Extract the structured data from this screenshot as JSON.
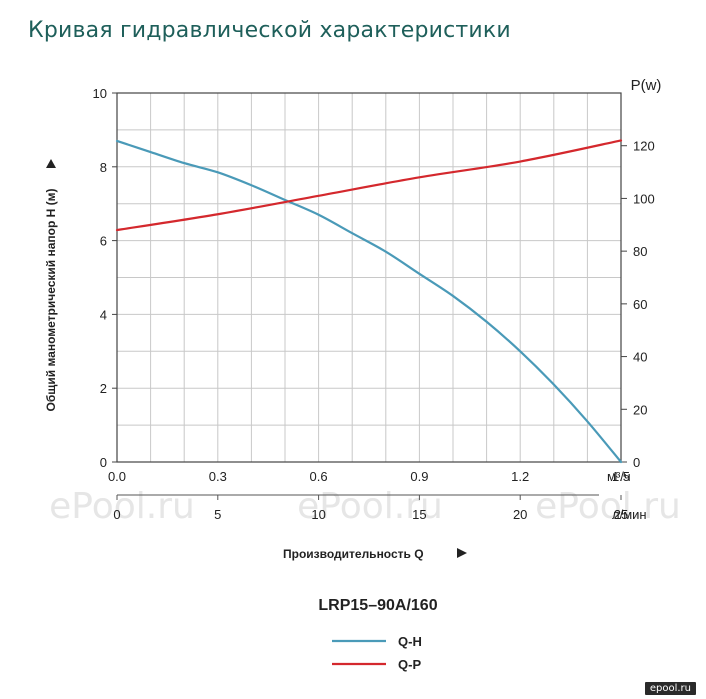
{
  "page_title": "Кривая гидравлической характеристики",
  "watermark_text": "ePool.ru",
  "corner_logo": "epool.ru",
  "colors": {
    "qh": "#4a9ab8",
    "qp": "#d4282d",
    "grid": "#c8c8c8",
    "title": "#1e5f5a"
  },
  "chart_data": {
    "type": "line",
    "title": "LRP15–90A/160",
    "xlabel": "Производительность Q",
    "ylabel_left": "Общий манометрический напор H (м)",
    "ylabel_right": "P(w)",
    "xlim": [
      0,
      1.5
    ],
    "ylim_left": [
      0,
      10
    ],
    "ylim_right": [
      0,
      140
    ],
    "x_ticks": [
      "0.0",
      "0.3",
      "0.6",
      "0.9",
      "1.2",
      "1.5"
    ],
    "x_unit": "м³/ч",
    "x2_ticks": [
      "0",
      "5",
      "10",
      "15",
      "20",
      "25"
    ],
    "x2_unit": "л/мин",
    "y_left_ticks": [
      "0",
      "2",
      "4",
      "6",
      "8",
      "10"
    ],
    "y_right_ticks": [
      "0",
      "20",
      "40",
      "60",
      "80",
      "100",
      "120"
    ],
    "grid": true,
    "legend_position": "bottom-center",
    "series": [
      {
        "name": "Q-H",
        "axis": "left",
        "x": [
          0.0,
          0.1,
          0.2,
          0.3,
          0.4,
          0.5,
          0.6,
          0.7,
          0.8,
          0.9,
          1.0,
          1.1,
          1.2,
          1.3,
          1.4,
          1.5
        ],
        "y": [
          8.7,
          8.4,
          8.1,
          7.85,
          7.5,
          7.1,
          6.7,
          6.2,
          5.7,
          5.1,
          4.5,
          3.8,
          3.0,
          2.1,
          1.1,
          0.0
        ]
      },
      {
        "name": "Q-P",
        "axis": "right",
        "x": [
          0.0,
          0.3,
          0.6,
          0.9,
          1.2,
          1.5
        ],
        "y": [
          88,
          94,
          101,
          108,
          114,
          122
        ]
      }
    ]
  }
}
